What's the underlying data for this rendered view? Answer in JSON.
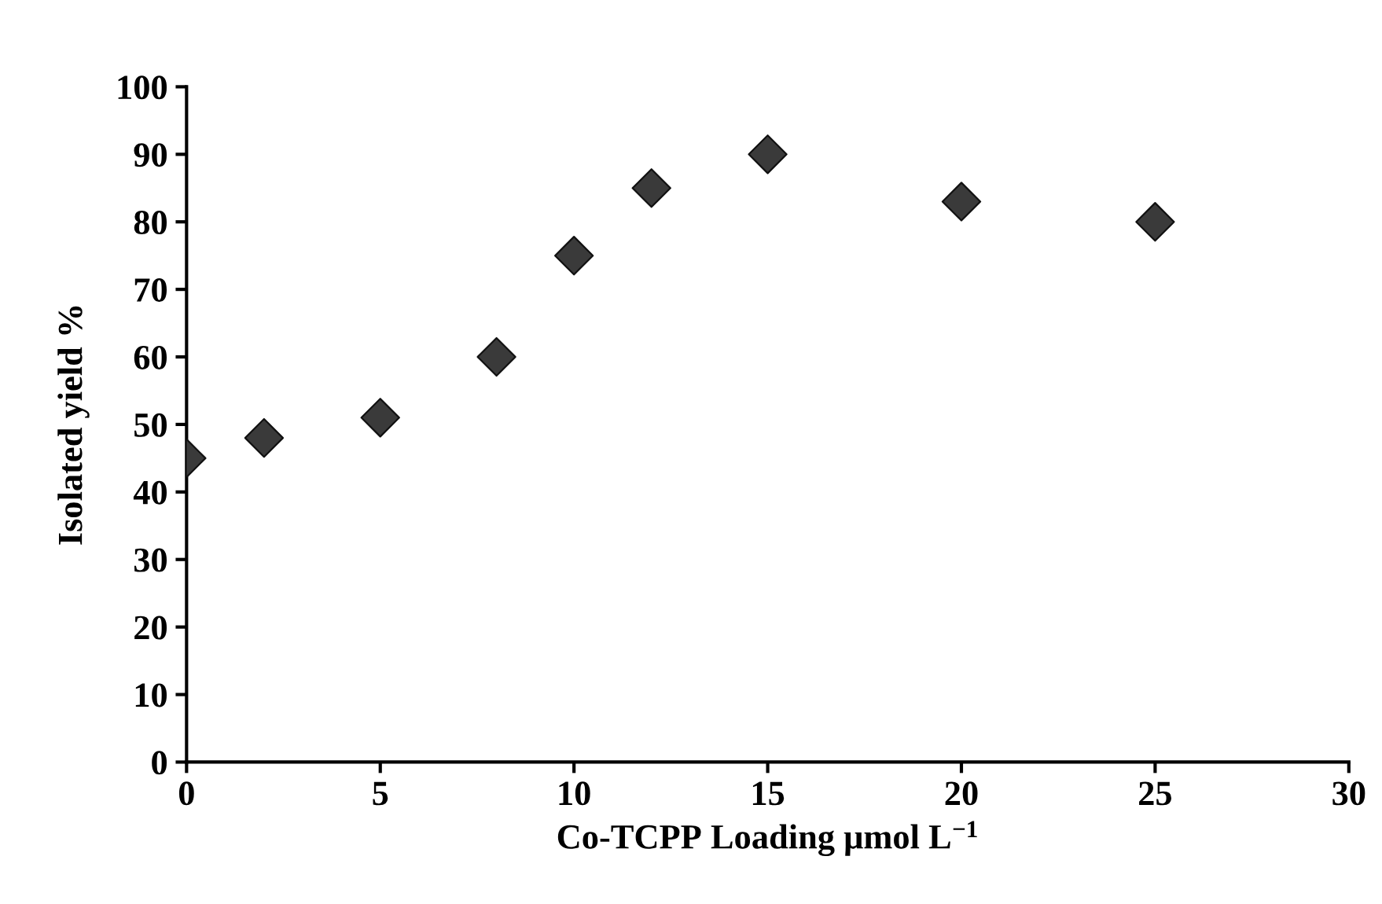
{
  "chart_data": {
    "type": "scatter",
    "xlabel": "Co-TCPP Loading μmol L$^{−1}$",
    "ylabel": "Isolated yield %",
    "x": [
      0,
      2,
      5,
      8,
      10,
      12,
      15,
      20,
      25
    ],
    "series": [
      {
        "color": "#3a3a3a",
        "values": [
          45,
          48,
          51,
          60,
          75,
          85,
          90,
          83,
          80
        ]
      }
    ],
    "marker": "diamond",
    "grid": false,
    "xlim": [
      0,
      30
    ],
    "xticks": [
      0,
      5,
      10,
      15,
      20,
      25,
      30
    ],
    "ylim": [
      0,
      100
    ],
    "yticks": [
      0,
      10,
      20,
      30,
      40,
      50,
      60,
      70,
      80,
      90,
      100
    ]
  }
}
